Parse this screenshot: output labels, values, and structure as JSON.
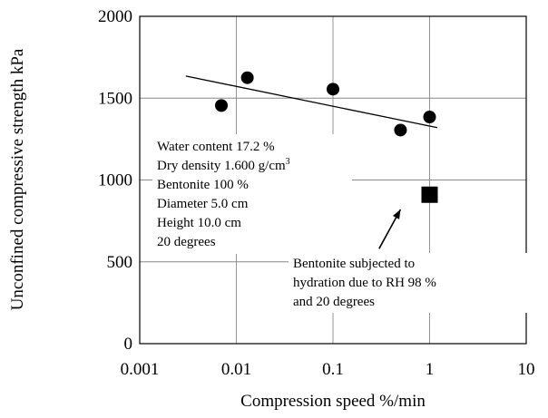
{
  "chart_data": {
    "type": "scatter",
    "xlabel": "Compression speed %/min",
    "ylabel": "Unconfined compressive strength kPa",
    "x_scale": "log",
    "xlim": [
      0.001,
      10
    ],
    "ylim": [
      0,
      2000
    ],
    "grid": true,
    "x_ticks": [
      "0.001",
      "0.01",
      "0.1",
      "1",
      "10"
    ],
    "y_ticks": [
      "0",
      "500",
      "1000",
      "1500",
      "2000"
    ],
    "series": [
      {
        "marker": "circle",
        "color": "#000000",
        "points": [
          {
            "x": 0.007,
            "y": 1455
          },
          {
            "x": 0.013,
            "y": 1625
          },
          {
            "x": 0.1,
            "y": 1555
          },
          {
            "x": 0.5,
            "y": 1305
          },
          {
            "x": 1.0,
            "y": 1385
          }
        ]
      },
      {
        "marker": "square",
        "color": "#000000",
        "points": [
          {
            "x": 1.0,
            "y": 910
          }
        ]
      }
    ],
    "trendline": {
      "x": [
        0.003,
        1.2
      ],
      "y": [
        1635,
        1320
      ]
    },
    "conditions": [
      "Water content 17.2 %",
      "Dry density 1.600 g/cm",
      "Bentonite 100 %",
      "Diameter 5.0 cm",
      "Height 10.0 cm",
      "20 degrees"
    ],
    "conditions_superscript": "3",
    "annotation_lines": [
      "Bentonite subjected to",
      "hydration due to RH 98 %",
      "and 20 degrees"
    ],
    "arrow": {
      "from": {
        "x": 0.3,
        "y": 580
      },
      "to": {
        "x": 0.5,
        "y": 820
      }
    }
  }
}
